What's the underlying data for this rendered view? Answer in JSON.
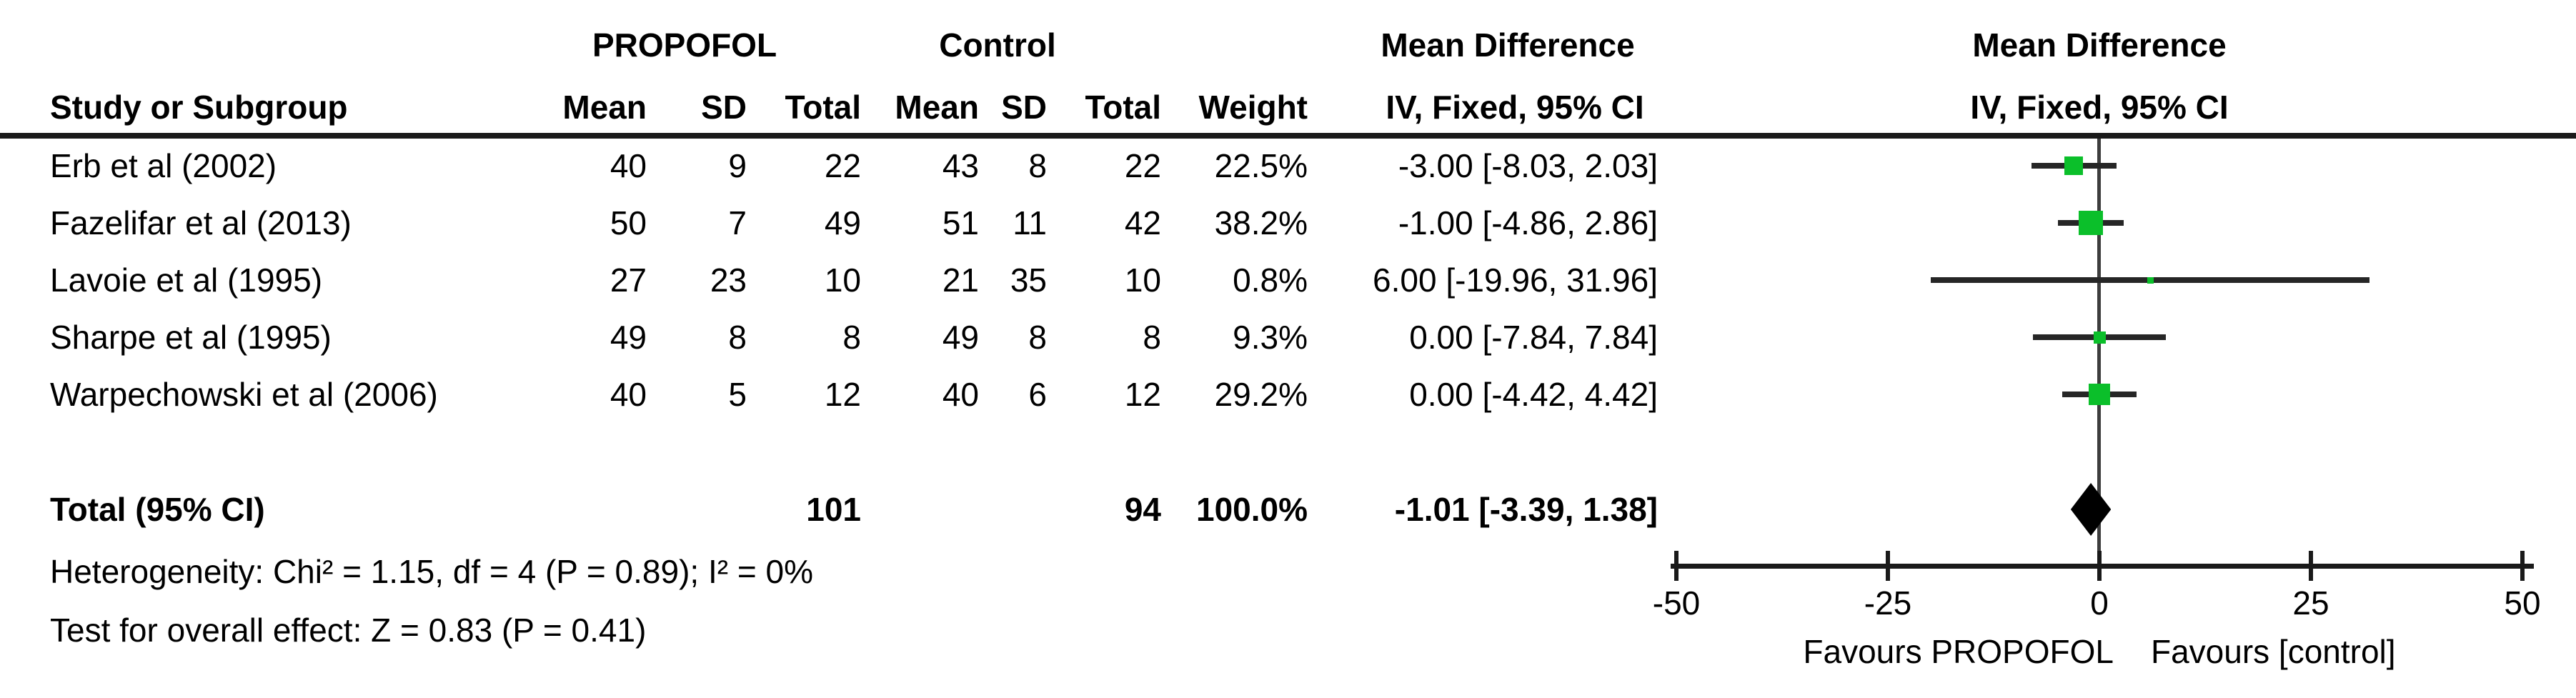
{
  "table": {
    "header": {
      "study": "Study or Subgroup",
      "group1": "PROPOFOL",
      "group2": "Control",
      "effect_line1": "Mean Difference",
      "effect_line2": "IV, Fixed, 95% CI",
      "mean": "Mean",
      "sd": "SD",
      "total": "Total",
      "weight": "Weight"
    },
    "rows": [
      {
        "study": "Erb et al (2002)",
        "p_mean": "40",
        "p_sd": "9",
        "p_total": "22",
        "c_mean": "43",
        "c_sd": "8",
        "c_total": "22",
        "weight": "22.5%",
        "ci": "-3.00 [-8.03, 2.03]"
      },
      {
        "study": "Fazelifar et al (2013)",
        "p_mean": "50",
        "p_sd": "7",
        "p_total": "49",
        "c_mean": "51",
        "c_sd": "11",
        "c_total": "42",
        "weight": "38.2%",
        "ci": "-1.00 [-4.86, 2.86]"
      },
      {
        "study": "Lavoie et al (1995)",
        "p_mean": "27",
        "p_sd": "23",
        "p_total": "10",
        "c_mean": "21",
        "c_sd": "35",
        "c_total": "10",
        "weight": "0.8%",
        "ci": "6.00 [-19.96, 31.96]"
      },
      {
        "study": "Sharpe et al (1995)",
        "p_mean": "49",
        "p_sd": "8",
        "p_total": "8",
        "c_mean": "49",
        "c_sd": "8",
        "c_total": "8",
        "weight": "9.3%",
        "ci": "0.00 [-7.84, 7.84]"
      },
      {
        "study": "Warpechowski et al (2006)",
        "p_mean": "40",
        "p_sd": "5",
        "p_total": "12",
        "c_mean": "40",
        "c_sd": "6",
        "c_total": "12",
        "weight": "29.2%",
        "ci": "0.00 [-4.42, 4.42]"
      }
    ],
    "total": {
      "label": "Total (95% CI)",
      "p_total": "101",
      "c_total": "94",
      "weight": "100.0%",
      "ci": "-1.01 [-3.39, 1.38]"
    }
  },
  "footnotes": {
    "heterogeneity": "Heterogeneity: Chi² = 1.15, df = 4 (P = 0.89); I² = 0%",
    "overall_effect": "Test for overall effect: Z = 0.83 (P = 0.41)"
  },
  "plot": {
    "title_line1": "Mean Difference",
    "title_line2": "IV, Fixed, 95% CI",
    "favours_left": "Favours PROPOFOL",
    "favours_right": "Favours [control]"
  },
  "chart_data": {
    "type": "scatter",
    "subtype": "forest_plot",
    "title": "Mean Difference",
    "effect_measure": "IV, Fixed, 95% CI",
    "xlim": [
      -50,
      50
    ],
    "x_ticks": [
      -50,
      -25,
      0,
      25,
      50
    ],
    "x_label_left": "Favours PROPOFOL",
    "x_label_right": "Favours [control]",
    "studies": [
      {
        "name": "Erb et al (2002)",
        "md": -3.0,
        "ci_low": -8.03,
        "ci_high": 2.03,
        "weight_pct": 22.5
      },
      {
        "name": "Fazelifar et al (2013)",
        "md": -1.0,
        "ci_low": -4.86,
        "ci_high": 2.86,
        "weight_pct": 38.2
      },
      {
        "name": "Lavoie et al (1995)",
        "md": 6.0,
        "ci_low": -19.96,
        "ci_high": 31.96,
        "weight_pct": 0.8
      },
      {
        "name": "Sharpe et al (1995)",
        "md": 0.0,
        "ci_low": -7.84,
        "ci_high": 7.84,
        "weight_pct": 9.3
      },
      {
        "name": "Warpechowski et al (2006)",
        "md": 0.0,
        "ci_low": -4.42,
        "ci_high": 4.42,
        "weight_pct": 29.2
      }
    ],
    "total": {
      "name": "Total (95% CI)",
      "md": -1.01,
      "ci_low": -3.39,
      "ci_high": 1.38,
      "weight_pct": 100.0
    },
    "totals": {
      "propofol_n": 101,
      "control_n": 94
    },
    "heterogeneity": {
      "chi2": 1.15,
      "df": 4,
      "p": 0.89,
      "i2_pct": 0
    },
    "overall_effect": {
      "z": 0.83,
      "p": 0.41
    },
    "marker_color": "#0bbf2a",
    "diamond_color": "#000000",
    "legend_position": "none",
    "grid": false
  }
}
